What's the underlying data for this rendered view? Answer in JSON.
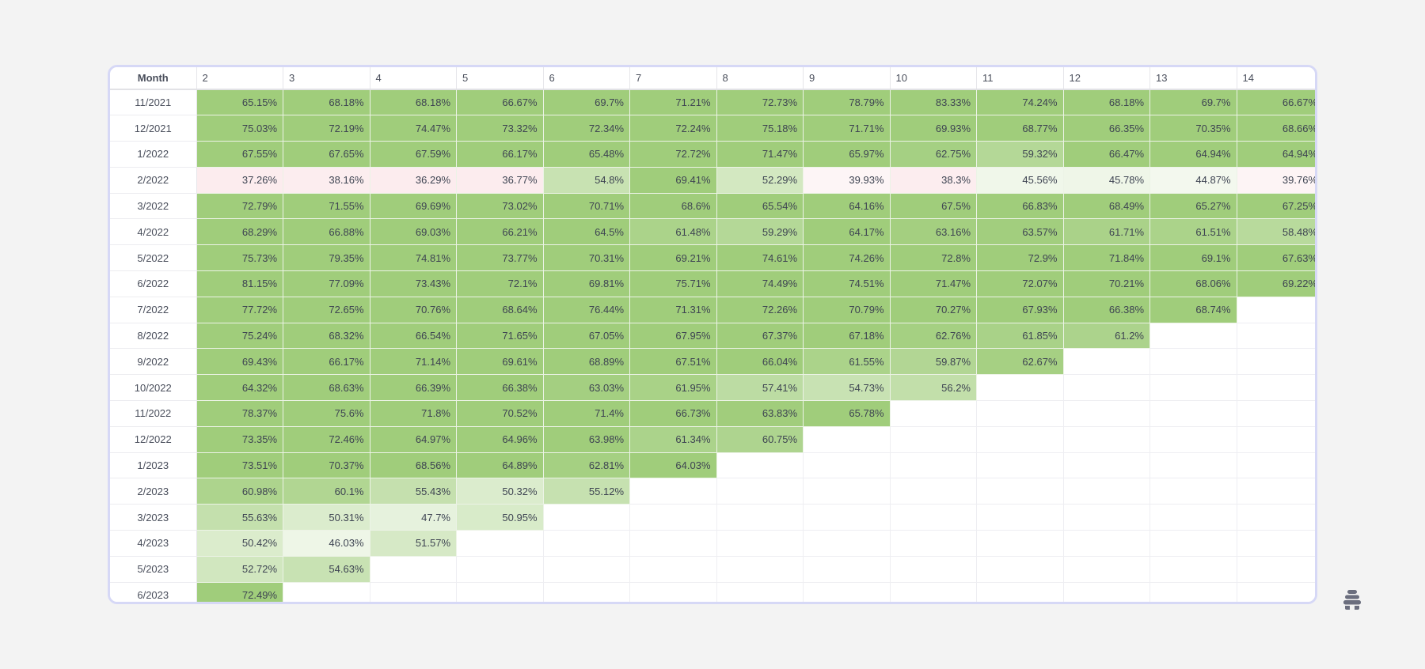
{
  "table": {
    "header": {
      "month_label": "Month",
      "columns": [
        "2",
        "3",
        "4",
        "5",
        "6",
        "7",
        "8",
        "9",
        "10",
        "11",
        "12",
        "13",
        "14"
      ]
    },
    "rows": [
      {
        "month": "11/2021",
        "values": [
          "65.15%",
          "68.18%",
          "68.18%",
          "66.67%",
          "69.7%",
          "71.21%",
          "72.73%",
          "78.79%",
          "83.33%",
          "74.24%",
          "68.18%",
          "69.7%",
          "66.67%"
        ]
      },
      {
        "month": "12/2021",
        "values": [
          "75.03%",
          "72.19%",
          "74.47%",
          "73.32%",
          "72.34%",
          "72.24%",
          "75.18%",
          "71.71%",
          "69.93%",
          "68.77%",
          "66.35%",
          "70.35%",
          "68.66%"
        ]
      },
      {
        "month": "1/2022",
        "values": [
          "67.55%",
          "67.65%",
          "67.59%",
          "66.17%",
          "65.48%",
          "72.72%",
          "71.47%",
          "65.97%",
          "62.75%",
          "59.32%",
          "66.47%",
          "64.94%",
          "64.94%"
        ]
      },
      {
        "month": "2/2022",
        "values": [
          "37.26%",
          "38.16%",
          "36.29%",
          "36.77%",
          "54.8%",
          "69.41%",
          "52.29%",
          "39.93%",
          "38.3%",
          "45.56%",
          "45.78%",
          "44.87%",
          "39.76%"
        ]
      },
      {
        "month": "3/2022",
        "values": [
          "72.79%",
          "71.55%",
          "69.69%",
          "73.02%",
          "70.71%",
          "68.6%",
          "65.54%",
          "64.16%",
          "67.5%",
          "66.83%",
          "68.49%",
          "65.27%",
          "67.25%"
        ]
      },
      {
        "month": "4/2022",
        "values": [
          "68.29%",
          "66.88%",
          "69.03%",
          "66.21%",
          "64.5%",
          "61.48%",
          "59.29%",
          "64.17%",
          "63.16%",
          "63.57%",
          "61.71%",
          "61.51%",
          "58.48%"
        ]
      },
      {
        "month": "5/2022",
        "values": [
          "75.73%",
          "79.35%",
          "74.81%",
          "73.77%",
          "70.31%",
          "69.21%",
          "74.61%",
          "74.26%",
          "72.8%",
          "72.9%",
          "71.84%",
          "69.1%",
          "67.63%"
        ]
      },
      {
        "month": "6/2022",
        "values": [
          "81.15%",
          "77.09%",
          "73.43%",
          "72.1%",
          "69.81%",
          "75.71%",
          "74.49%",
          "74.51%",
          "71.47%",
          "72.07%",
          "70.21%",
          "68.06%",
          "69.22%"
        ]
      },
      {
        "month": "7/2022",
        "values": [
          "77.72%",
          "72.65%",
          "70.76%",
          "68.64%",
          "76.44%",
          "71.31%",
          "72.26%",
          "70.79%",
          "70.27%",
          "67.93%",
          "66.38%",
          "68.74%",
          ""
        ]
      },
      {
        "month": "8/2022",
        "values": [
          "75.24%",
          "68.32%",
          "66.54%",
          "71.65%",
          "67.05%",
          "67.95%",
          "67.37%",
          "67.18%",
          "62.76%",
          "61.85%",
          "61.2%",
          "",
          ""
        ]
      },
      {
        "month": "9/2022",
        "values": [
          "69.43%",
          "66.17%",
          "71.14%",
          "69.61%",
          "68.89%",
          "67.51%",
          "66.04%",
          "61.55%",
          "59.87%",
          "62.67%",
          "",
          "",
          ""
        ]
      },
      {
        "month": "10/2022",
        "values": [
          "64.32%",
          "68.63%",
          "66.39%",
          "66.38%",
          "63.03%",
          "61.95%",
          "57.41%",
          "54.73%",
          "56.2%",
          "",
          "",
          "",
          ""
        ]
      },
      {
        "month": "11/2022",
        "values": [
          "78.37%",
          "75.6%",
          "71.8%",
          "70.52%",
          "71.4%",
          "66.73%",
          "63.83%",
          "65.78%",
          "",
          "",
          "",
          "",
          ""
        ]
      },
      {
        "month": "12/2022",
        "values": [
          "73.35%",
          "72.46%",
          "64.97%",
          "64.96%",
          "63.98%",
          "61.34%",
          "60.75%",
          "",
          "",
          "",
          "",
          "",
          ""
        ]
      },
      {
        "month": "1/2023",
        "values": [
          "73.51%",
          "70.37%",
          "68.56%",
          "64.89%",
          "62.81%",
          "64.03%",
          "",
          "",
          "",
          "",
          "",
          "",
          ""
        ]
      },
      {
        "month": "2/2023",
        "values": [
          "60.98%",
          "60.1%",
          "55.43%",
          "50.32%",
          "55.12%",
          "",
          "",
          "",
          "",
          "",
          "",
          "",
          ""
        ]
      },
      {
        "month": "3/2023",
        "values": [
          "55.63%",
          "50.31%",
          "47.7%",
          "50.95%",
          "",
          "",
          "",
          "",
          "",
          "",
          "",
          "",
          ""
        ]
      },
      {
        "month": "4/2023",
        "values": [
          "50.42%",
          "46.03%",
          "51.57%",
          "",
          "",
          "",
          "",
          "",
          "",
          "",
          "",
          "",
          ""
        ]
      },
      {
        "month": "5/2023",
        "values": [
          "52.72%",
          "54.63%",
          "",
          "",
          "",
          "",
          "",
          "",
          "",
          "",
          "",
          "",
          ""
        ]
      },
      {
        "month": "6/2023",
        "values": [
          "72.49%",
          "",
          "",
          "",
          "",
          "",
          "",
          "",
          "",
          "",
          "",
          "",
          ""
        ]
      }
    ]
  },
  "colors": {
    "high_green": "#a0cd7b",
    "low_pink": "#fcecee",
    "mid_white": "#ffffff",
    "frame_border": "#d6d8f6",
    "background": "#f3f3f3"
  },
  "logo": {
    "icon": "beehive-icon"
  }
}
